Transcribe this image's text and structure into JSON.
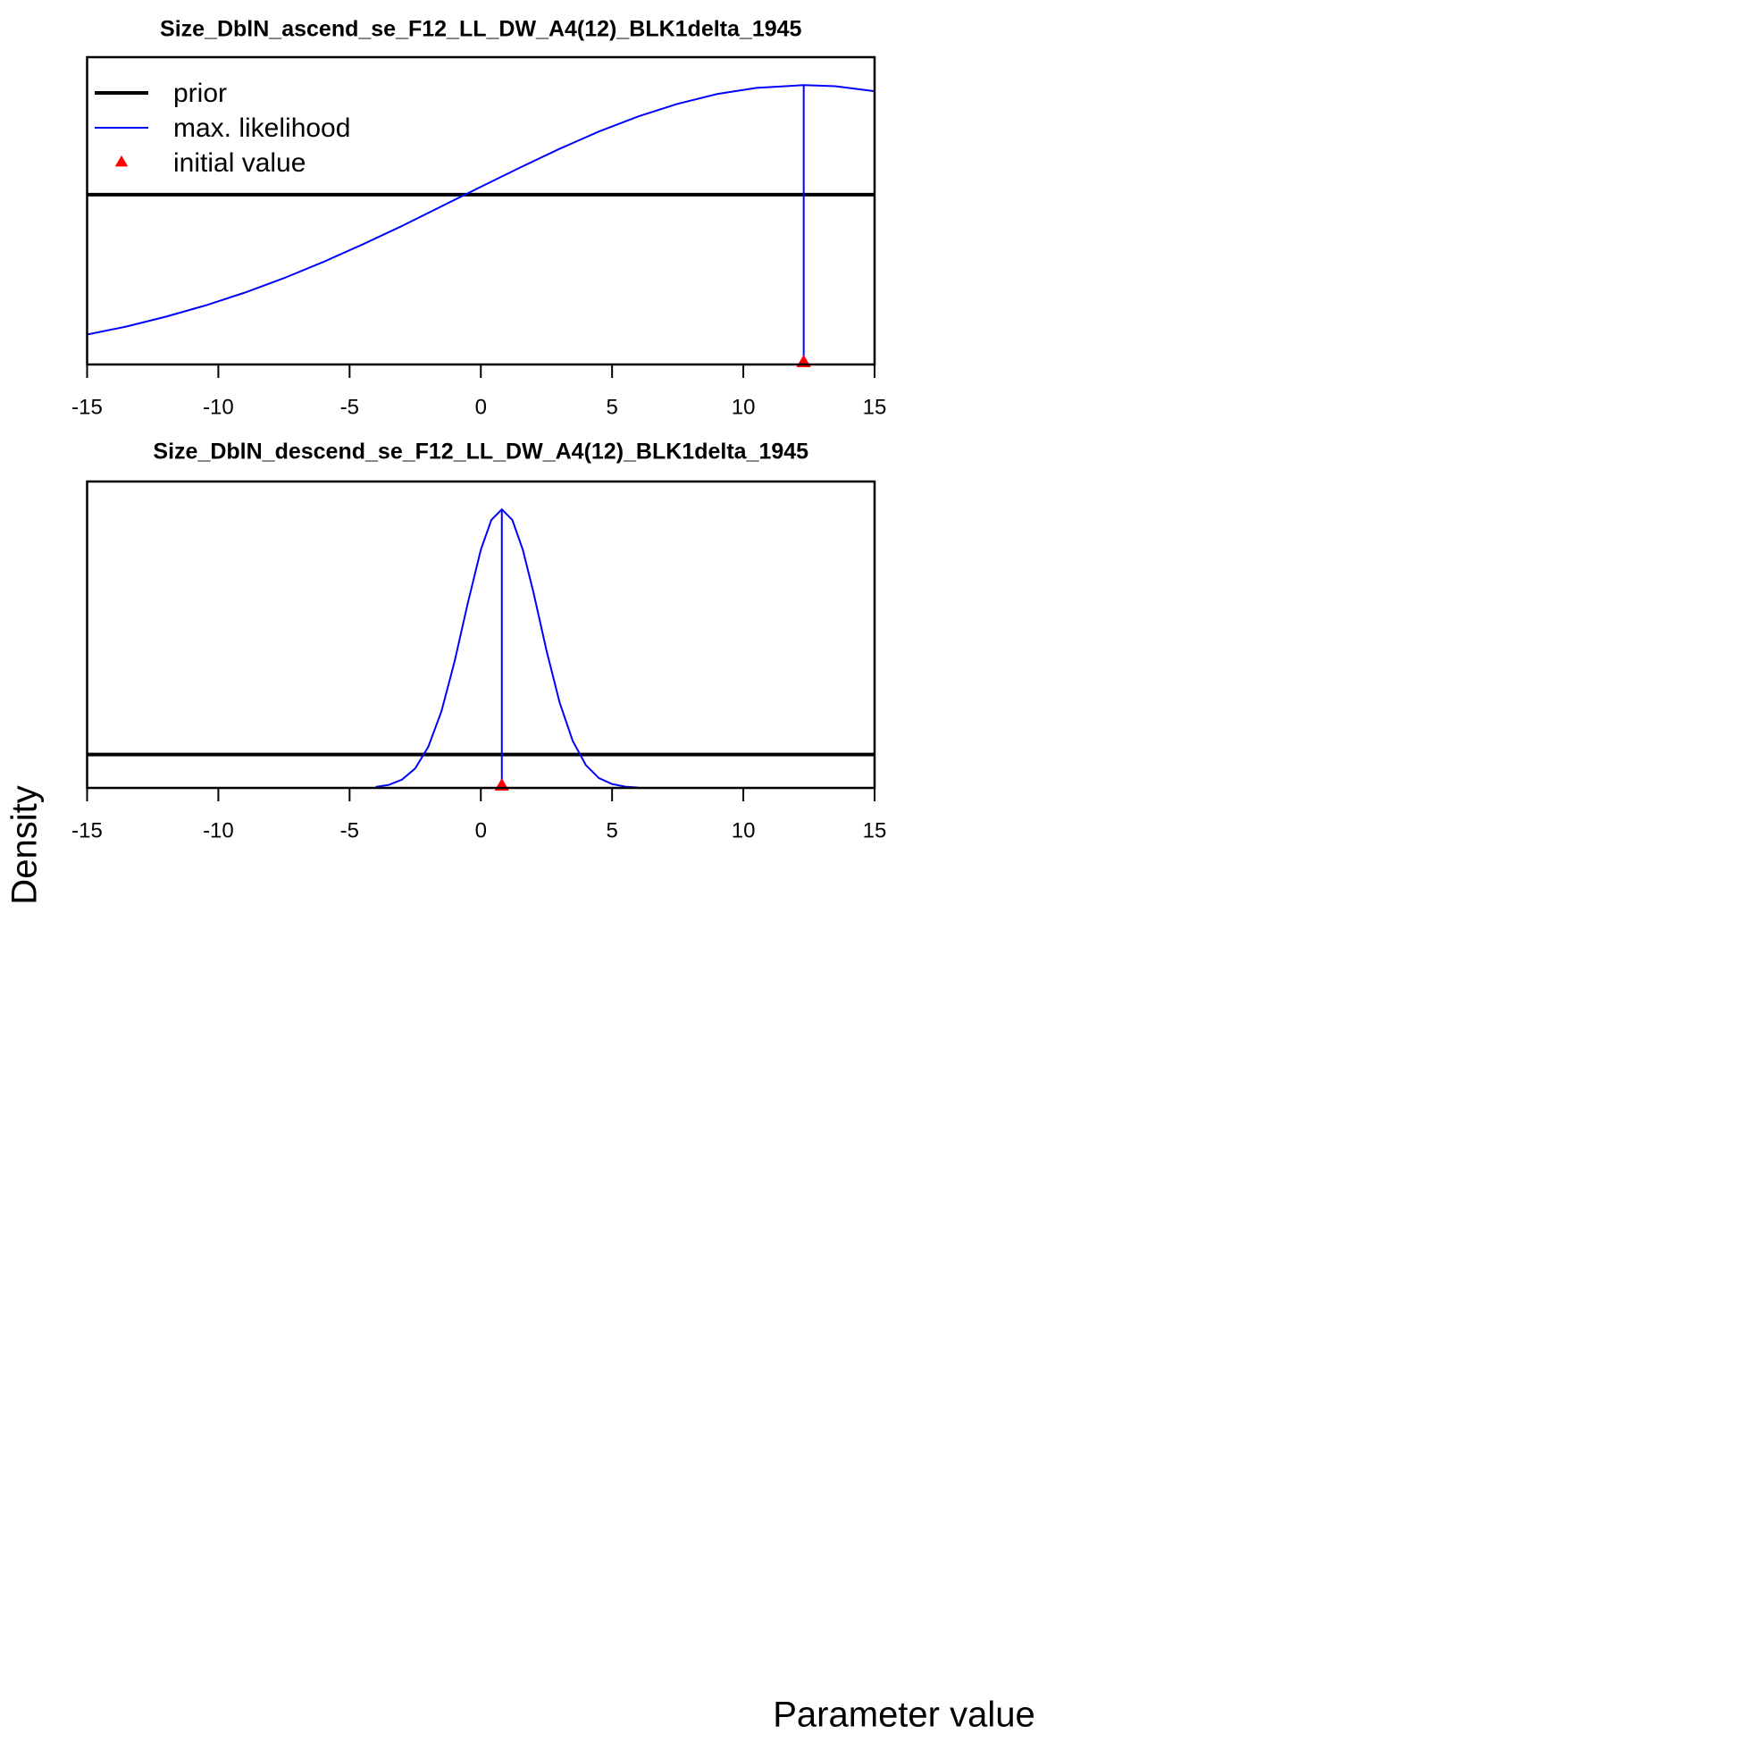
{
  "x_label": "Parameter value",
  "y_label": "Density",
  "chart_data": [
    {
      "type": "line",
      "title": "Size_DblN_ascend_se_F12_LL_DW_A4(12)_BLK1delta_1945",
      "xlim": [
        -15,
        15
      ],
      "xticks": [
        -15,
        -10,
        -5,
        0,
        5,
        10,
        15
      ],
      "ylim": [
        0,
        1.1
      ],
      "legend": "topleft",
      "series": [
        {
          "name": "prior",
          "color": "#000000",
          "kind": "line",
          "width": 4,
          "x": [
            -15,
            15
          ],
          "values": [
            0.608,
            0.608
          ]
        },
        {
          "name": "max. likelihood",
          "color": "#0000ff",
          "kind": "line",
          "width": 2,
          "x": [
            -15,
            -13.5,
            -12,
            -10.5,
            -9,
            -7.5,
            -6,
            -4.5,
            -3,
            -1.5,
            0,
            1.5,
            3,
            4.5,
            6,
            7.5,
            9,
            10.5,
            12.3,
            13.5,
            15
          ],
          "values": [
            0.107,
            0.136,
            0.171,
            0.211,
            0.257,
            0.309,
            0.367,
            0.43,
            0.496,
            0.566,
            0.636,
            0.705,
            0.772,
            0.834,
            0.888,
            0.933,
            0.968,
            0.99,
            1,
            0.996,
            0.978
          ]
        },
        {
          "name": "initial value",
          "color": "#ff0000",
          "kind": "triangle",
          "x": [
            12.3
          ],
          "values": [
            0
          ]
        }
      ]
    },
    {
      "type": "line",
      "title": "Size_DblN_descend_se_F12_LL_DW_A4(12)_BLK1delta_1945",
      "xlim": [
        -15,
        15
      ],
      "xticks": [
        -15,
        -10,
        -5,
        0,
        5,
        10,
        15
      ],
      "ylim": [
        0,
        1.1
      ],
      "series": [
        {
          "name": "prior",
          "color": "#000000",
          "kind": "line",
          "width": 4,
          "x": [
            -15,
            15
          ],
          "values": [
            0.12,
            0.12
          ]
        },
        {
          "name": "max. likelihood",
          "color": "#0000ff",
          "kind": "line",
          "width": 2,
          "x": [
            -4,
            -3.5,
            -3,
            -2.5,
            -2,
            -1.5,
            -1,
            -0.5,
            0,
            0.4,
            0.8,
            1.2,
            1.6,
            2,
            2.5,
            3,
            3.5,
            4,
            4.5,
            5,
            5.5,
            6
          ],
          "values": [
            0.0036,
            0.011,
            0.03,
            0.07,
            0.148,
            0.275,
            0.454,
            0.662,
            0.855,
            0.962,
            1,
            0.962,
            0.855,
            0.704,
            0.494,
            0.307,
            0.169,
            0.082,
            0.035,
            0.014,
            0.0046,
            0.0014
          ]
        },
        {
          "name": "initial value",
          "color": "#ff0000",
          "kind": "triangle",
          "x": [
            0.8
          ],
          "values": [
            0
          ]
        }
      ]
    }
  ]
}
